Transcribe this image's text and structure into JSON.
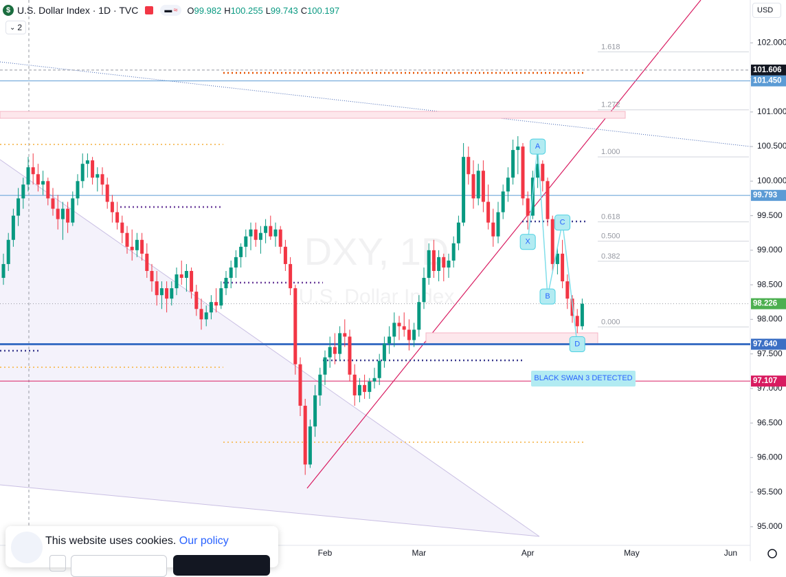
{
  "chart_data": {
    "type": "candlestick",
    "title": "U.S. Dollar Index · 1D · TVC",
    "header_ohlc": [
      {
        "label": "O",
        "value": 99.982
      },
      {
        "label": "H",
        "value": 100.255
      },
      {
        "label": "L",
        "value": 99.743
      },
      {
        "label": "C",
        "value": 100.197
      }
    ],
    "indicator_count": 2,
    "currency": "USD",
    "watermark": [
      "DXY, 1D",
      "U.S. Dollar Index"
    ],
    "up_color": "#089981",
    "down_color": "#f23645",
    "ylim": [
      94.73,
      102.62
    ],
    "yticks": [
      {
        "value": 95,
        "label": "95.000"
      },
      {
        "value": 95.5,
        "label": "95.500"
      },
      {
        "value": 96,
        "label": "96.000"
      },
      {
        "value": 96.5,
        "label": "96.500"
      },
      {
        "value": 97,
        "label": "97.000"
      },
      {
        "value": 97.5,
        "label": "97.500"
      },
      {
        "value": 98,
        "label": "98.000"
      },
      {
        "value": 98.5,
        "label": "98.500"
      },
      {
        "value": 99,
        "label": "99.000"
      },
      {
        "value": 99.5,
        "label": "99.500"
      },
      {
        "value": 100,
        "label": "100.000"
      },
      {
        "value": 100.5,
        "label": "100.500"
      },
      {
        "value": 101,
        "label": "101.000"
      },
      {
        "value": 101.5,
        "label": "101.500"
      },
      {
        "value": 102,
        "label": "102.000"
      }
    ],
    "categories": [
      null,
      null,
      null,
      null,
      null,
      null,
      null,
      null,
      null,
      null,
      null,
      null,
      null,
      null,
      null,
      null,
      null,
      null,
      null,
      null,
      null,
      null,
      null,
      null,
      null,
      null,
      null,
      null,
      null,
      null,
      null,
      null,
      null,
      null,
      null,
      null,
      null,
      null,
      null,
      null,
      null,
      null,
      null,
      null,
      null,
      null,
      null,
      null,
      null,
      null,
      null,
      null,
      null,
      null,
      null,
      null,
      null,
      null,
      null,
      null,
      null,
      null,
      null,
      null,
      null,
      "Feb",
      null,
      null,
      null,
      null,
      null,
      null,
      null,
      null,
      null,
      null,
      null,
      null,
      null,
      null,
      null,
      null,
      null,
      null,
      "Mar",
      null,
      null,
      null,
      null,
      null,
      null,
      null,
      null,
      null,
      null,
      null,
      null,
      null,
      null,
      null,
      null,
      null,
      null,
      null,
      null,
      null,
      "Apr",
      null,
      null,
      null,
      null,
      null,
      null,
      null,
      null,
      null,
      null,
      null,
      null,
      null,
      null,
      null,
      null,
      null,
      null,
      null,
      null,
      "May",
      null,
      null,
      null,
      null,
      null,
      null,
      null,
      null,
      null,
      null,
      null,
      null,
      null,
      null,
      null,
      null,
      null,
      null,
      null,
      "Jun",
      null,
      null,
      null
    ],
    "ohlc": [
      [
        98.6,
        98.95,
        98.5,
        98.8
      ],
      [
        98.8,
        99.25,
        98.7,
        99.15
      ],
      [
        99.15,
        99.6,
        99.05,
        99.5
      ],
      [
        99.5,
        99.9,
        99.35,
        99.75
      ],
      [
        99.75,
        100.05,
        99.6,
        99.95
      ],
      [
        99.95,
        100.35,
        99.85,
        100.2
      ],
      [
        100.2,
        100.4,
        99.95,
        100.1
      ],
      [
        100.1,
        100.25,
        99.85,
        99.95
      ],
      [
        99.95,
        100.15,
        99.8,
        100.0
      ],
      [
        100.0,
        100.05,
        99.65,
        99.75
      ],
      [
        99.75,
        99.9,
        99.5,
        99.6
      ],
      [
        99.6,
        99.8,
        99.3,
        99.45
      ],
      [
        99.45,
        99.7,
        99.15,
        99.6
      ],
      [
        99.6,
        99.7,
        99.25,
        99.4
      ],
      [
        99.4,
        99.85,
        99.35,
        99.75
      ],
      [
        99.75,
        100.1,
        99.65,
        100.0
      ],
      [
        100.0,
        100.4,
        99.9,
        100.25
      ],
      [
        100.25,
        100.4,
        100.05,
        100.3
      ],
      [
        100.3,
        100.35,
        99.95,
        100.05
      ],
      [
        100.05,
        100.2,
        99.85,
        100.1
      ],
      [
        100.1,
        100.2,
        99.8,
        99.95
      ],
      [
        99.95,
        100.05,
        99.6,
        99.7
      ],
      [
        99.7,
        99.8,
        99.4,
        99.55
      ],
      [
        99.55,
        99.7,
        99.3,
        99.4
      ],
      [
        99.4,
        99.5,
        99.1,
        99.25
      ],
      [
        99.25,
        99.35,
        98.95,
        99.05
      ],
      [
        99.05,
        99.3,
        98.85,
        99.0
      ],
      [
        99.0,
        99.25,
        98.9,
        99.15
      ],
      [
        99.15,
        99.25,
        98.85,
        98.95
      ],
      [
        98.95,
        99.1,
        98.6,
        98.7
      ],
      [
        98.7,
        98.8,
        98.4,
        98.55
      ],
      [
        98.55,
        98.7,
        98.2,
        98.35
      ],
      [
        98.35,
        98.55,
        98.15,
        98.45
      ],
      [
        98.45,
        98.55,
        98.1,
        98.3
      ],
      [
        98.3,
        98.55,
        98.2,
        98.45
      ],
      [
        98.45,
        98.75,
        98.35,
        98.65
      ],
      [
        98.65,
        98.85,
        98.5,
        98.6
      ],
      [
        98.6,
        98.8,
        98.4,
        98.7
      ],
      [
        98.7,
        98.75,
        98.3,
        98.4
      ],
      [
        98.4,
        98.5,
        98.05,
        98.15
      ],
      [
        98.15,
        98.3,
        97.85,
        98.0
      ],
      [
        98.0,
        98.2,
        97.9,
        98.1
      ],
      [
        98.1,
        98.35,
        98.0,
        98.25
      ],
      [
        98.25,
        98.45,
        98.1,
        98.2
      ],
      [
        98.2,
        98.55,
        98.15,
        98.45
      ],
      [
        98.45,
        98.7,
        98.35,
        98.6
      ],
      [
        98.6,
        98.85,
        98.45,
        98.75
      ],
      [
        98.75,
        99.0,
        98.6,
        98.9
      ],
      [
        98.9,
        99.1,
        98.75,
        99.05
      ],
      [
        99.05,
        99.3,
        98.9,
        99.2
      ],
      [
        99.2,
        99.4,
        99.0,
        99.3
      ],
      [
        99.3,
        99.4,
        99.05,
        99.15
      ],
      [
        99.15,
        99.35,
        98.95,
        99.25
      ],
      [
        99.25,
        99.45,
        99.1,
        99.35
      ],
      [
        99.35,
        99.5,
        99.15,
        99.2
      ],
      [
        99.2,
        99.4,
        99.05,
        99.3
      ],
      [
        99.3,
        99.35,
        98.95,
        99.05
      ],
      [
        99.05,
        99.15,
        98.7,
        98.8
      ],
      [
        98.8,
        98.9,
        98.35,
        98.45
      ],
      [
        98.45,
        98.5,
        97.2,
        97.35
      ],
      [
        97.35,
        97.45,
        96.6,
        96.75
      ],
      [
        96.75,
        96.85,
        95.75,
        95.9
      ],
      [
        95.9,
        96.55,
        95.85,
        96.45
      ],
      [
        96.45,
        97.05,
        96.3,
        96.9
      ],
      [
        96.9,
        97.3,
        96.75,
        97.2
      ],
      [
        97.2,
        97.55,
        97.05,
        97.45
      ],
      [
        97.45,
        97.75,
        97.3,
        97.6
      ],
      [
        97.6,
        97.8,
        97.35,
        97.5
      ],
      [
        97.5,
        97.9,
        97.4,
        97.8
      ],
      [
        97.8,
        98.0,
        97.6,
        97.75
      ],
      [
        97.75,
        97.85,
        97.1,
        97.2
      ],
      [
        97.2,
        97.35,
        96.75,
        96.9
      ],
      [
        96.9,
        97.15,
        96.8,
        97.05
      ],
      [
        97.05,
        97.2,
        96.85,
        96.95
      ],
      [
        96.95,
        97.15,
        96.85,
        97.1
      ],
      [
        97.1,
        97.3,
        97.0,
        97.15
      ],
      [
        97.15,
        97.5,
        97.05,
        97.4
      ],
      [
        97.4,
        97.75,
        97.3,
        97.65
      ],
      [
        97.65,
        97.9,
        97.5,
        97.75
      ],
      [
        97.75,
        98.1,
        97.6,
        97.95
      ],
      [
        97.95,
        98.05,
        97.7,
        97.9
      ],
      [
        97.9,
        98.1,
        97.75,
        97.85
      ],
      [
        97.85,
        98.0,
        97.55,
        97.7
      ],
      [
        97.7,
        97.95,
        97.6,
        97.85
      ],
      [
        97.85,
        98.35,
        97.75,
        98.25
      ],
      [
        98.25,
        98.75,
        98.15,
        98.6
      ],
      [
        98.6,
        99.1,
        98.5,
        99.0
      ],
      [
        99.0,
        99.15,
        98.6,
        98.7
      ],
      [
        98.7,
        99.0,
        98.55,
        98.9
      ],
      [
        98.9,
        98.95,
        98.55,
        98.75
      ],
      [
        98.75,
        98.95,
        98.6,
        98.85
      ],
      [
        98.85,
        99.2,
        98.75,
        99.1
      ],
      [
        99.1,
        99.5,
        99.0,
        99.4
      ],
      [
        99.4,
        100.55,
        99.35,
        100.35
      ],
      [
        100.35,
        100.5,
        99.95,
        100.1
      ],
      [
        100.1,
        100.3,
        99.6,
        99.75
      ],
      [
        99.75,
        100.25,
        99.65,
        100.15
      ],
      [
        100.15,
        100.3,
        99.55,
        99.7
      ],
      [
        99.7,
        99.95,
        99.3,
        99.4
      ],
      [
        99.4,
        99.6,
        99.05,
        99.2
      ],
      [
        99.2,
        99.7,
        99.1,
        99.55
      ],
      [
        99.55,
        99.95,
        99.45,
        99.85
      ],
      [
        99.85,
        100.2,
        99.7,
        100.05
      ],
      [
        100.05,
        100.6,
        99.95,
        100.45
      ],
      [
        100.45,
        100.65,
        100.1,
        100.5
      ],
      [
        100.5,
        100.55,
        99.65,
        99.75
      ],
      [
        99.75,
        99.85,
        99.3,
        99.5
      ],
      [
        99.5,
        100.15,
        99.45,
        100.05
      ],
      [
        100.05,
        100.4,
        99.9,
        100.25
      ],
      [
        100.25,
        100.3,
        99.85,
        100.0
      ],
      [
        100.0,
        100.05,
        99.35,
        99.45
      ],
      [
        99.45,
        99.5,
        98.7,
        98.8
      ],
      [
        98.8,
        99.05,
        98.65,
        98.95
      ],
      [
        98.95,
        99.15,
        98.45,
        98.55
      ],
      [
        98.55,
        98.65,
        98.15,
        98.3
      ],
      [
        98.3,
        98.35,
        97.95,
        98.05
      ],
      [
        98.05,
        98.15,
        97.8,
        97.9
      ],
      [
        97.9,
        98.3,
        97.85,
        98.226
      ],
      null,
      null,
      null,
      null,
      null,
      null,
      null,
      null,
      null,
      null,
      null,
      null,
      null,
      null,
      null,
      null,
      null,
      null,
      null,
      null,
      null,
      null,
      null,
      null,
      null,
      null,
      null,
      null,
      null,
      null,
      null,
      null,
      null
    ],
    "levels": [
      {
        "value": 101.606,
        "label": "101.606",
        "color": "#131722",
        "style": "dashed"
      },
      {
        "value": 101.45,
        "label": "101.450",
        "color": "#5b9bd5",
        "style": "solid"
      },
      {
        "value": 99.793,
        "label": "99.793",
        "color": "#5b9bd5",
        "style": "solid"
      },
      {
        "value": 98.226,
        "label": "98.226",
        "color": "#4caf50",
        "style": "dotted"
      },
      {
        "value": 97.64,
        "label": "97.640",
        "color": "#3b6fc4",
        "style": "thick"
      },
      {
        "value": 97.107,
        "label": "97.107",
        "color": "#d81b60",
        "style": "solid"
      }
    ],
    "fib": [
      {
        "label": "1.618",
        "price": 101.87
      },
      {
        "label": "1.272",
        "price": 101.03
      },
      {
        "label": "1.000",
        "price": 100.35
      },
      {
        "label": "0.618",
        "price": 99.41
      },
      {
        "label": "0.500",
        "price": 99.13
      },
      {
        "label": "0.382",
        "price": 98.84
      },
      {
        "label": "0.000",
        "price": 97.89
      }
    ],
    "pattern": [
      {
        "label": "X",
        "index": 106,
        "price": 99.12
      },
      {
        "label": "A",
        "index": 108,
        "price": 100.5
      },
      {
        "label": "B",
        "index": 110,
        "price": 98.33
      },
      {
        "label": "C",
        "index": 113,
        "price": 99.4
      },
      {
        "label": "D",
        "index": 116,
        "price": 97.64
      }
    ],
    "pattern_label": "BLACK SWAN 3 DETECTED"
  },
  "cookie_banner": {
    "text": "This website uses cookies.",
    "link": "Our policy"
  }
}
